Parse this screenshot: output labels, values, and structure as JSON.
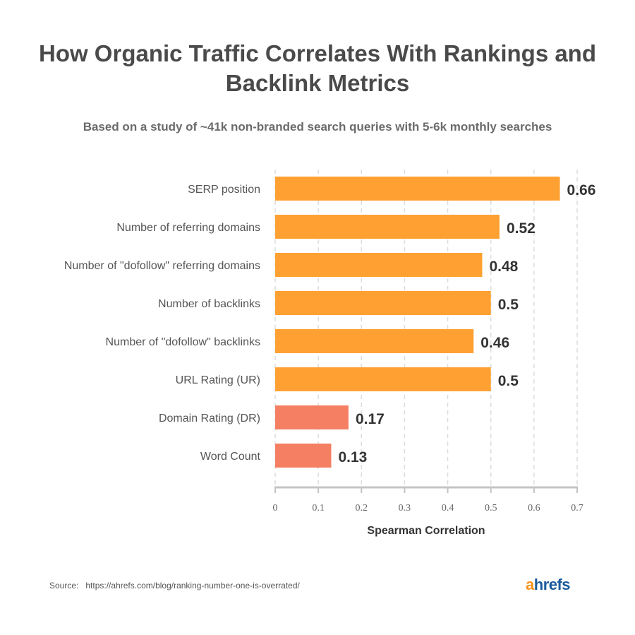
{
  "chart_data": {
    "type": "bar",
    "orientation": "horizontal",
    "title": "How Organic Traffic Correlates With Rankings and Backlink Metrics",
    "subtitle": "Based on a study of ~41k non-branded search queries with 5-6k monthly searches",
    "categories": [
      "SERP position",
      "Number of referring domains",
      "Number of \"dofollow\" referring domains",
      "Number of backlinks",
      "Number of \"dofollow\" backlinks",
      "URL Rating (UR)",
      "Domain Rating (DR)",
      "Word Count"
    ],
    "values": [
      0.66,
      0.52,
      0.48,
      0.5,
      0.46,
      0.5,
      0.17,
      0.13
    ],
    "data_labels": [
      "0.66",
      "0.52",
      "0.48",
      "0.5",
      "0.46",
      "0.5",
      "0.17",
      "0.13"
    ],
    "bar_colors": [
      "#ffa132",
      "#ffa132",
      "#ffa132",
      "#ffa132",
      "#ffa132",
      "#ffa132",
      "#f47f63",
      "#f47f63"
    ],
    "xlabel": "Spearman Correlation",
    "ylabel": "",
    "xlim": [
      0,
      0.7
    ],
    "xticks": [
      "0",
      "0.1",
      "0.2",
      "0.3",
      "0.4",
      "0.5",
      "0.6",
      "0.7"
    ],
    "grid": "vertical dashed"
  },
  "footer": {
    "source_label": "Source:",
    "source_url": "https://ahrefs.com/blog/ranking-number-one-is-overrated/",
    "logo": "ahrefs",
    "logo_colors": {
      "a": "#f7941d",
      "hrefs": "#1a5a9c"
    }
  }
}
